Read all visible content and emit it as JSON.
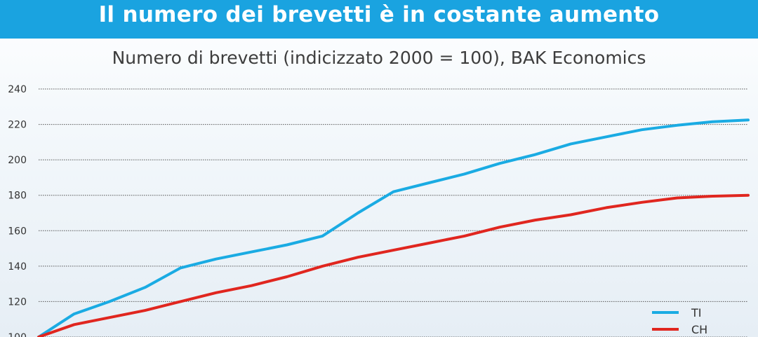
{
  "banner": {
    "title": "Il numero dei brevetti è in costante aumento"
  },
  "colors": {
    "banner_bg": "#1aa3e0",
    "TI": "#1aabe3",
    "CH": "#e0261f",
    "grid": "#555555",
    "text": "#3d3d3d"
  },
  "chart_data": {
    "type": "line",
    "title": "Numero di brevetti (indicizzato 2000 = 100), BAK Economics",
    "xlabel": "",
    "ylabel": "",
    "ylim": [
      100,
      240
    ],
    "y_ticks": [
      100,
      120,
      140,
      160,
      180,
      200,
      220,
      240
    ],
    "grid": true,
    "legend_position": "bottom-right",
    "x": [
      0,
      1,
      2,
      3,
      4,
      5,
      6,
      7,
      8,
      9,
      10,
      11,
      12,
      13,
      14,
      15,
      16,
      17,
      18,
      19,
      20
    ],
    "series": [
      {
        "name": "TI",
        "color": "#1aabe3",
        "values": [
          100,
          113,
          120,
          128,
          139,
          144,
          148,
          152,
          157,
          170,
          182,
          187,
          192,
          198,
          203,
          209,
          213,
          217,
          219.5,
          221.5,
          222.5
        ]
      },
      {
        "name": "CH",
        "color": "#e0261f",
        "values": [
          100,
          107,
          111,
          115,
          120,
          125,
          129,
          134,
          140,
          145,
          149,
          153,
          157,
          162,
          166,
          169,
          173,
          176,
          178.5,
          179.5,
          180
        ]
      }
    ]
  }
}
